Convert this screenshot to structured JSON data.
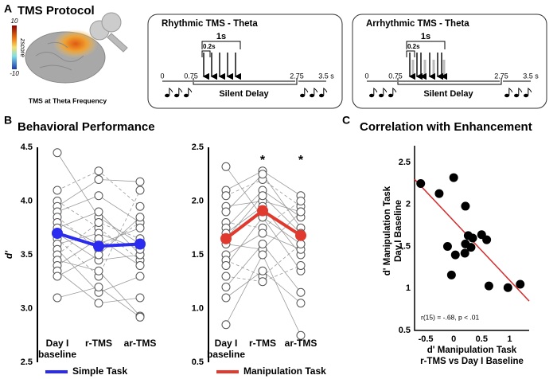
{
  "panel_labels": [
    "A",
    "B",
    "C"
  ],
  "protocol": {
    "title": "TMS Protocol",
    "brain_caption": "TMS at Theta Frequency",
    "colorbar": {
      "max": "10",
      "min": "-10",
      "label": "zscore"
    },
    "conditions": [
      {
        "title": "Rhythmic TMS - Theta",
        "period": "1s",
        "pulse_interval": "0.2s",
        "times": [
          "0",
          "0.75",
          "2.75",
          "3.5 s"
        ],
        "delay": "Silent Delay"
      },
      {
        "title": "Arrhythmic TMS - Theta",
        "period": "1s",
        "pulse_interval": "0.2s",
        "times": [
          "0",
          "0.75",
          "2.75",
          "3.5 s"
        ],
        "delay": "Silent Delay"
      }
    ]
  },
  "section_title": "Behavioral Performance",
  "chart_data": [
    {
      "type": "line",
      "ylabel": "d'",
      "categories": [
        "Day I baseline",
        "r-TMS",
        "ar-TMS"
      ],
      "ylim": [
        2.5,
        4.5
      ],
      "yticks": [
        2.5,
        {
          "value": 3,
          "label": "3.0"
        },
        3.5,
        {
          "value": 4,
          "label": "4.0"
        },
        4.5
      ],
      "series": [
        {
          "name": "Simple Task",
          "color": "#2b2bf0",
          "values": [
            3.7,
            3.58,
            3.6
          ]
        }
      ],
      "subject_color": "#9a9a9a",
      "subjects": [
        {
          "values": [
            4.45,
            3.85,
            3.6
          ],
          "dashed": false
        },
        {
          "values": [
            4.1,
            4.28,
            3.95
          ],
          "dashed": true
        },
        {
          "values": [
            4.0,
            3.75,
            3.45
          ],
          "dashed": true
        },
        {
          "values": [
            3.95,
            4.2,
            4.18
          ],
          "dashed": false
        },
        {
          "values": [
            3.9,
            4.05,
            3.8
          ],
          "dashed": false
        },
        {
          "values": [
            3.85,
            3.55,
            3.8
          ],
          "dashed": true
        },
        {
          "values": [
            3.8,
            3.6,
            3.75
          ],
          "dashed": false
        },
        {
          "values": [
            3.75,
            3.9,
            3.5
          ],
          "dashed": false
        },
        {
          "values": [
            3.7,
            3.45,
            3.5
          ],
          "dashed": false
        },
        {
          "values": [
            3.65,
            3.3,
            4.1
          ],
          "dashed": true
        },
        {
          "values": [
            3.6,
            3.7,
            3.55
          ],
          "dashed": false
        },
        {
          "values": [
            3.55,
            3.15,
            3.3
          ],
          "dashed": false
        },
        {
          "values": [
            3.5,
            3.8,
            3.65
          ],
          "dashed": true
        },
        {
          "values": [
            3.45,
            3.35,
            2.93
          ],
          "dashed": false
        },
        {
          "values": [
            3.4,
            3.65,
            3.4
          ],
          "dashed": false
        },
        {
          "values": [
            3.35,
            3.05,
            3.1
          ],
          "dashed": false
        },
        {
          "values": [
            3.3,
            3.5,
            3.85
          ],
          "dashed": false
        },
        {
          "values": [
            3.1,
            3.2,
            2.92
          ],
          "dashed": false
        }
      ]
    },
    {
      "type": "line",
      "categories": [
        "Day I baseline",
        "r-TMS",
        "ar-TMS"
      ],
      "ylim": [
        0.5,
        2.5
      ],
      "yticks": [
        0.5,
        {
          "value": 1,
          "label": "1.0"
        },
        1.5,
        {
          "value": 2,
          "label": "2.0"
        },
        2.5
      ],
      "series": [
        {
          "name": "Manipulation Task",
          "color": "#e03a2f",
          "values": [
            1.65,
            1.91,
            1.68
          ]
        }
      ],
      "subject_color": "#9a9a9a",
      "significance": [
        null,
        "*",
        "*"
      ],
      "subjects": [
        {
          "values": [
            2.32,
            1.85,
            1.6
          ],
          "dashed": false
        },
        {
          "values": [
            2.1,
            2.28,
            2.05
          ],
          "dashed": false
        },
        {
          "values": [
            2.05,
            2.2,
            1.95
          ],
          "dashed": true
        },
        {
          "values": [
            1.95,
            2.0,
            1.9
          ],
          "dashed": false
        },
        {
          "values": [
            1.9,
            2.25,
            1.75
          ],
          "dashed": false
        },
        {
          "values": [
            1.8,
            1.75,
            2.0
          ],
          "dashed": true
        },
        {
          "values": [
            1.75,
            2.1,
            1.85
          ],
          "dashed": false
        },
        {
          "values": [
            1.7,
            1.95,
            1.5
          ],
          "dashed": false
        },
        {
          "values": [
            1.65,
            2.05,
            1.7
          ],
          "dashed": false
        },
        {
          "values": [
            1.6,
            1.55,
            1.9
          ],
          "dashed": false
        },
        {
          "values": [
            1.5,
            1.7,
            1.55
          ],
          "dashed": false
        },
        {
          "values": [
            1.45,
            1.3,
            1.6
          ],
          "dashed": true
        },
        {
          "values": [
            1.4,
            1.85,
            1.35
          ],
          "dashed": false
        },
        {
          "values": [
            1.3,
            1.25,
            1.4
          ],
          "dashed": true
        },
        {
          "values": [
            1.2,
            1.6,
            1.15
          ],
          "dashed": false
        },
        {
          "values": [
            1.1,
            1.35,
            1.05
          ],
          "dashed": false
        },
        {
          "values": [
            0.85,
            1.5,
            0.75
          ],
          "dashed": false
        }
      ]
    },
    {
      "type": "scatter",
      "title": "Correlation with Enhancement",
      "xlabel": [
        "d' Manipulation Task",
        "r-TMS vs Day I Baseline"
      ],
      "ylabel": [
        "d' Manipulation Task",
        "Day I Baseline"
      ],
      "x": [
        -0.59,
        -0.26,
        0,
        0.21,
        -0.11,
        0.03,
        -0.04,
        0.21,
        0.26,
        0.31,
        0.2,
        0.5,
        0.59,
        0.63,
        0.97,
        1.19,
        0.34
      ],
      "y": [
        2.25,
        2.13,
        2.32,
        1.98,
        1.5,
        1.4,
        1.16,
        1.53,
        1.63,
        1.49,
        1.42,
        1.64,
        1.58,
        1.03,
        1.01,
        1.05,
        1.6
      ],
      "color": "#000000",
      "xlim": [
        -0.7,
        1.35
      ],
      "ylim": [
        0.5,
        2.7
      ],
      "xticks": [
        -0.5,
        0,
        0.5,
        1
      ],
      "yticks": [
        0.5,
        1,
        1.5,
        2,
        2.5
      ],
      "trendline": {
        "x": [
          -0.7,
          1.35
        ],
        "y": [
          2.3,
          0.85
        ],
        "color": "#d62a2a"
      },
      "annotation": "r(15) = -.68, p < .01"
    }
  ]
}
